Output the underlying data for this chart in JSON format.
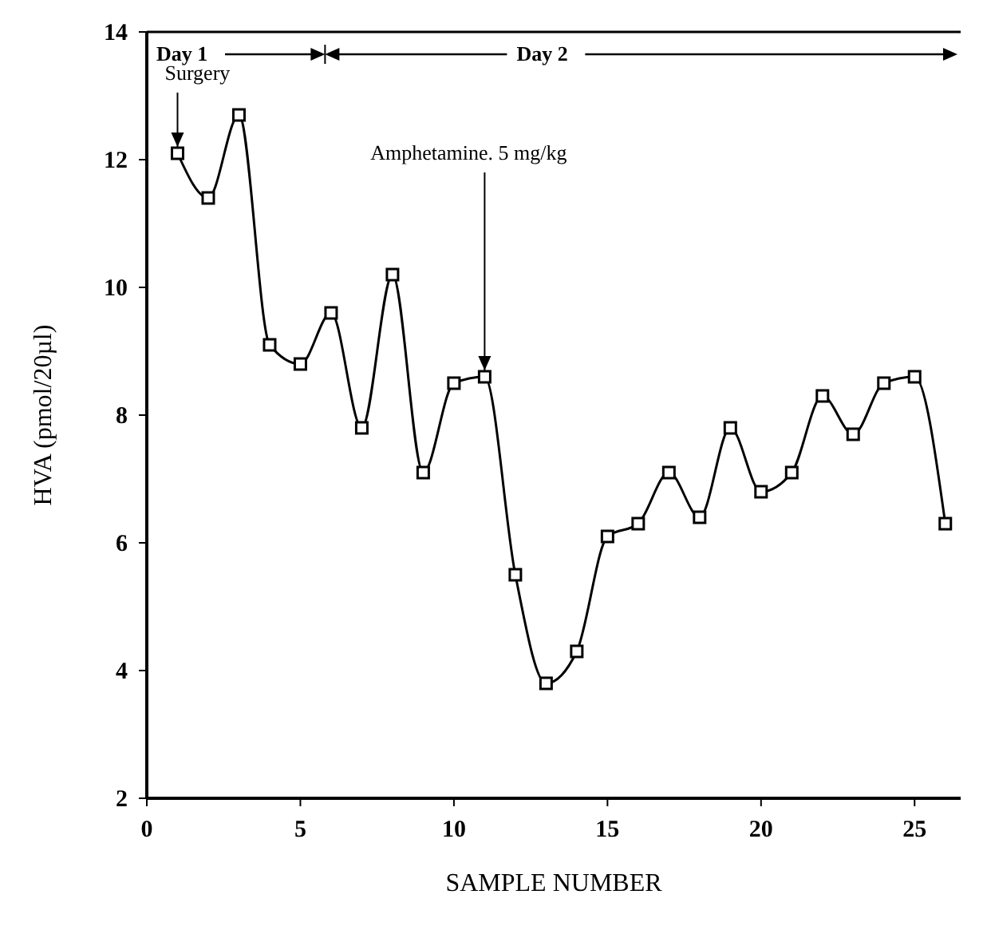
{
  "chart_data": {
    "type": "line",
    "xlabel": "SAMPLE NUMBER",
    "ylabel": "HVA (pmol/20µl)",
    "x": [
      1,
      2,
      3,
      4,
      5,
      6,
      7,
      8,
      9,
      10,
      11,
      12,
      13,
      14,
      15,
      16,
      17,
      18,
      19,
      20,
      21,
      22,
      23,
      24,
      25,
      26
    ],
    "series": [
      {
        "color": "#000000",
        "values": [
          12.1,
          11.4,
          12.7,
          9.1,
          8.8,
          9.6,
          7.8,
          10.2,
          7.1,
          8.5,
          8.6,
          5.5,
          3.8,
          4.3,
          6.1,
          6.3,
          7.1,
          6.4,
          7.8,
          6.8,
          7.1,
          8.3,
          7.7,
          8.5,
          8.6,
          6.3
        ]
      }
    ],
    "xlim": [
      0,
      26.5
    ],
    "xticks": [
      0,
      5,
      10,
      15,
      20,
      25
    ],
    "ylim": [
      2,
      14
    ],
    "yticks": [
      2,
      4,
      6,
      8,
      10,
      12,
      14
    ],
    "marker": "square",
    "line_style": "solid",
    "grid": false,
    "annotations": [
      "Day 1",
      "Day 2",
      {
        "text": "Surgery",
        "x": 1,
        "y": 12.1
      },
      {
        "text": "Amphetamine. 5 mg/kg",
        "x": 11,
        "y": 8.6
      }
    ]
  }
}
